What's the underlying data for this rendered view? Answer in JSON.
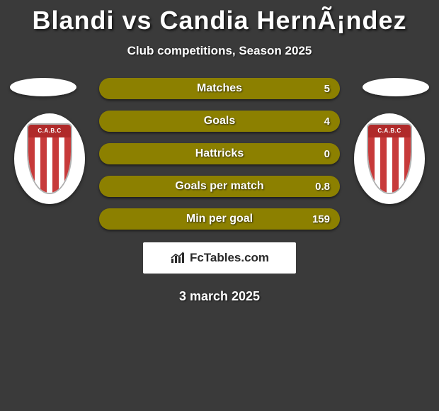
{
  "title": "Blandi vs Candia HernÃ¡ndez",
  "subtitle": "Club competitions, Season 2025",
  "date": "3 march 2025",
  "brand": "FcTables.com",
  "colors": {
    "background": "#3a3a3a",
    "text": "#ffffff",
    "bar_left": "#8c8000",
    "bar_right": "#8c8000",
    "brand_box_bg": "#ffffff",
    "brand_text": "#2a2a2a",
    "halo": "#ffffff"
  },
  "badge": {
    "stripe_colors": [
      "#c73a3a",
      "#ffffff",
      "#c73a3a",
      "#ffffff",
      "#c73a3a",
      "#ffffff",
      "#c73a3a"
    ],
    "top_text": "C.A.B.C",
    "top_bg": "#b02a2a",
    "ellipse_bg": "#ffffff"
  },
  "bars": [
    {
      "label": "Matches",
      "left": "",
      "right": "5",
      "split": 0.0
    },
    {
      "label": "Goals",
      "left": "",
      "right": "4",
      "split": 0.0
    },
    {
      "label": "Hattricks",
      "left": "",
      "right": "0",
      "split": 0.0
    },
    {
      "label": "Goals per match",
      "left": "",
      "right": "0.8",
      "split": 0.0
    },
    {
      "label": "Min per goal",
      "left": "",
      "right": "159",
      "split": 0.0
    }
  ],
  "bar_style": {
    "height": 30,
    "radius": 15,
    "gap": 16,
    "font_size": 16
  }
}
